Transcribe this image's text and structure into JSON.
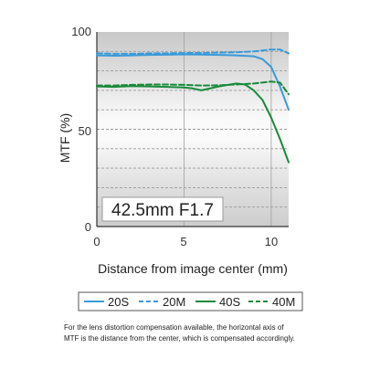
{
  "chart_data": {
    "type": "line",
    "title": "",
    "xlabel": "Distance from image center (mm)",
    "ylabel": "MTF (%)",
    "xlim": [
      0,
      11
    ],
    "ylim": [
      0,
      100
    ],
    "x_ticks": [
      "0",
      "5",
      "10"
    ],
    "y_ticks": [
      "0",
      "50",
      "100"
    ],
    "grid": "dashed horizontal at 10% steps",
    "annotation": "42.5mm F1.7",
    "legend_position": "bottom",
    "series": [
      {
        "name": "20S",
        "color": "#3a9ad9",
        "dash": "solid",
        "x": [
          0,
          1,
          2,
          3,
          4,
          5,
          6,
          7,
          8,
          9,
          9.5,
          10,
          10.5,
          11
        ],
        "y": [
          88,
          87.8,
          88,
          88.2,
          88.3,
          88.5,
          88.4,
          88.2,
          88,
          87.5,
          86,
          82,
          72,
          60
        ]
      },
      {
        "name": "20M",
        "color": "#3a9ad9",
        "dash": "dashed",
        "x": [
          0,
          1,
          2,
          3,
          4,
          5,
          6,
          7,
          8,
          9,
          10,
          10.5,
          11
        ],
        "y": [
          89,
          88.8,
          88.8,
          89,
          89,
          89.2,
          89.2,
          89.4,
          89.6,
          90,
          91,
          91,
          89
        ]
      },
      {
        "name": "40S",
        "color": "#1a8a3c",
        "dash": "solid",
        "x": [
          0,
          1,
          2,
          3,
          4,
          5,
          5.5,
          6,
          7,
          8,
          8.5,
          9,
          9.5,
          10,
          10.5,
          11
        ],
        "y": [
          72,
          71.8,
          72.2,
          72,
          71.8,
          71.5,
          71,
          70,
          72,
          73.5,
          73,
          70,
          65,
          56,
          45,
          33
        ]
      },
      {
        "name": "40M",
        "color": "#1a8a3c",
        "dash": "dashed",
        "x": [
          0,
          1,
          2,
          3,
          4,
          5,
          6,
          7,
          8,
          9,
          10,
          10.5,
          11
        ],
        "y": [
          72.5,
          72.5,
          72.8,
          73,
          73,
          72.8,
          72.5,
          72.6,
          73,
          73.5,
          74.5,
          74,
          68
        ]
      }
    ]
  },
  "footnote": {
    "line1": "For the lens distortion compensation available, the horizontal axis of",
    "line2": "MTF is the distance from the center, which is compensated accordingly."
  }
}
